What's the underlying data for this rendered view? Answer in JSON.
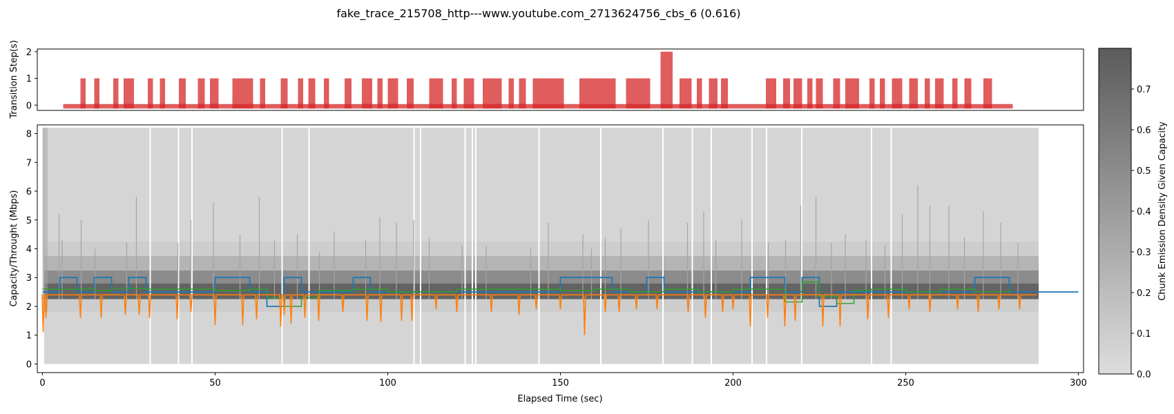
{
  "chart_data": {
    "title": "fake_trace_215708_http---www.youtube.com_2713624756_cbs_6 (0.616)",
    "colors": {
      "transition": "#d62728",
      "capacity": "#1f77b4",
      "throughput": "#ff7f0e",
      "estimate": "#2ca02c",
      "density_low": "#dddddd",
      "density_high": "#5b5b5b"
    },
    "top_panel": {
      "type": "bar",
      "ylabel": "Transition Step(s)",
      "ylim": [
        -0.2,
        2.1
      ],
      "yticks": [
        0,
        1,
        2
      ],
      "x_range": [
        6,
        281
      ],
      "steps": [
        {
          "x": [
            11,
            12.5
          ],
          "v": 1
        },
        {
          "x": [
            15,
            16.5
          ],
          "v": 1
        },
        {
          "x": [
            20.5,
            22
          ],
          "v": 1
        },
        {
          "x": [
            23.5,
            26.5
          ],
          "v": 1
        },
        {
          "x": [
            30.5,
            32
          ],
          "v": 1
        },
        {
          "x": [
            34,
            35.5
          ],
          "v": 1
        },
        {
          "x": [
            39.5,
            41.5
          ],
          "v": 1
        },
        {
          "x": [
            45,
            47
          ],
          "v": 1
        },
        {
          "x": [
            48.5,
            51
          ],
          "v": 1
        },
        {
          "x": [
            55,
            61
          ],
          "v": 1
        },
        {
          "x": [
            63,
            64.5
          ],
          "v": 1
        },
        {
          "x": [
            69,
            71
          ],
          "v": 1
        },
        {
          "x": [
            74,
            75.5
          ],
          "v": 1
        },
        {
          "x": [
            77,
            79
          ],
          "v": 1
        },
        {
          "x": [
            81.5,
            83
          ],
          "v": 1
        },
        {
          "x": [
            87.5,
            89.5
          ],
          "v": 1
        },
        {
          "x": [
            92.5,
            95.5
          ],
          "v": 1
        },
        {
          "x": [
            97,
            98.5
          ],
          "v": 1
        },
        {
          "x": [
            100,
            103
          ],
          "v": 1
        },
        {
          "x": [
            105.5,
            107.5
          ],
          "v": 1
        },
        {
          "x": [
            112,
            116
          ],
          "v": 1
        },
        {
          "x": [
            118.5,
            120
          ],
          "v": 1
        },
        {
          "x": [
            122,
            125
          ],
          "v": 1
        },
        {
          "x": [
            127.5,
            133
          ],
          "v": 1
        },
        {
          "x": [
            135,
            136.5
          ],
          "v": 1
        },
        {
          "x": [
            138,
            140
          ],
          "v": 1
        },
        {
          "x": [
            142,
            151
          ],
          "v": 1
        },
        {
          "x": [
            155.5,
            166
          ],
          "v": 1
        },
        {
          "x": [
            169,
            176
          ],
          "v": 1
        },
        {
          "x": [
            179,
            182.5
          ],
          "v": 2
        },
        {
          "x": [
            184.5,
            188
          ],
          "v": 1
        },
        {
          "x": [
            189.5,
            191
          ],
          "v": 1
        },
        {
          "x": [
            193,
            195.5
          ],
          "v": 1
        },
        {
          "x": [
            196.5,
            198.5
          ],
          "v": 1
        },
        {
          "x": [
            209.5,
            212.5
          ],
          "v": 1
        },
        {
          "x": [
            214.5,
            216.5
          ],
          "v": 1
        },
        {
          "x": [
            217.5,
            220
          ],
          "v": 1
        },
        {
          "x": [
            221.5,
            223
          ],
          "v": 1
        },
        {
          "x": [
            224,
            226
          ],
          "v": 1
        },
        {
          "x": [
            229,
            231
          ],
          "v": 1
        },
        {
          "x": [
            232.5,
            236.5
          ],
          "v": 1
        },
        {
          "x": [
            239.5,
            241
          ],
          "v": 1
        },
        {
          "x": [
            242.5,
            244
          ],
          "v": 1
        },
        {
          "x": [
            246,
            249
          ],
          "v": 1
        },
        {
          "x": [
            251,
            253.5
          ],
          "v": 1
        },
        {
          "x": [
            255.5,
            257
          ],
          "v": 1
        },
        {
          "x": [
            258.5,
            261
          ],
          "v": 1
        },
        {
          "x": [
            263.5,
            265
          ],
          "v": 1
        },
        {
          "x": [
            267,
            269
          ],
          "v": 1
        },
        {
          "x": [
            272.5,
            275
          ],
          "v": 1
        }
      ]
    },
    "main_panel": {
      "type": "line",
      "xlabel": "Elapsed Time (sec)",
      "ylabel": "Capacity/Throught (Mbps)",
      "xlim": [
        -1.5,
        301.5
      ],
      "ylim": [
        -0.3,
        8.3
      ],
      "xticks": [
        0,
        50,
        100,
        150,
        200,
        250,
        300
      ],
      "yticks": [
        0,
        1,
        2,
        3,
        4,
        5,
        6,
        7,
        8
      ],
      "density_x_range": [
        0.5,
        288.5
      ],
      "density_gaps": [
        31.2,
        39.4,
        43.3,
        69.4,
        77.2,
        107.6,
        109.5,
        122.4,
        124.5,
        125.5,
        143.8,
        161.7,
        179.7,
        188.2,
        193.7,
        205.5,
        209.7,
        219.9,
        240.1,
        245.8
      ],
      "density_bands": [
        {
          "y": [
            0,
            1.8
          ],
          "v": 0.05
        },
        {
          "y": [
            1.8,
            2.25
          ],
          "v": 0.1
        },
        {
          "y": [
            2.25,
            2.8
          ],
          "v": 0.75
        },
        {
          "y": [
            2.8,
            3.25
          ],
          "v": 0.5
        },
        {
          "y": [
            3.25,
            3.75
          ],
          "v": 0.25
        },
        {
          "y": [
            3.75,
            4.25
          ],
          "v": 0.1
        },
        {
          "y": [
            4.25,
            8.2
          ],
          "v": 0.05
        }
      ],
      "density_spikes": [
        {
          "x": 0.3,
          "top": 8.2
        },
        {
          "x": 4.8,
          "top": 5.2
        },
        {
          "x": 5.7,
          "top": 4.3
        },
        {
          "x": 11.2,
          "top": 5.0
        },
        {
          "x": 15.2,
          "top": 4.0
        },
        {
          "x": 24.4,
          "top": 4.2
        },
        {
          "x": 27.2,
          "top": 5.8
        },
        {
          "x": 39.2,
          "top": 4.2
        },
        {
          "x": 43,
          "top": 5.0
        },
        {
          "x": 49.5,
          "top": 5.6
        },
        {
          "x": 57.2,
          "top": 4.5
        },
        {
          "x": 62.8,
          "top": 5.8
        },
        {
          "x": 67.2,
          "top": 4.3
        },
        {
          "x": 73.8,
          "top": 4.5
        },
        {
          "x": 80.2,
          "top": 3.9
        },
        {
          "x": 84.5,
          "top": 4.6
        },
        {
          "x": 93.6,
          "top": 4.3
        },
        {
          "x": 97.7,
          "top": 5.1
        },
        {
          "x": 102.5,
          "top": 4.9
        },
        {
          "x": 107.5,
          "top": 5.0
        },
        {
          "x": 112,
          "top": 4.4
        },
        {
          "x": 121.5,
          "top": 4.1
        },
        {
          "x": 128.5,
          "top": 4.1
        },
        {
          "x": 141.4,
          "top": 4.0
        },
        {
          "x": 146.5,
          "top": 4.9
        },
        {
          "x": 156.5,
          "top": 4.5
        },
        {
          "x": 159,
          "top": 4.0
        },
        {
          "x": 163,
          "top": 4.4
        },
        {
          "x": 167.5,
          "top": 4.7
        },
        {
          "x": 175.5,
          "top": 5.0
        },
        {
          "x": 186.8,
          "top": 4.9
        },
        {
          "x": 191.5,
          "top": 5.3
        },
        {
          "x": 195,
          "top": 4.3
        },
        {
          "x": 202.5,
          "top": 5.0
        },
        {
          "x": 210.2,
          "top": 4.2
        },
        {
          "x": 215.2,
          "top": 4.3
        },
        {
          "x": 219.6,
          "top": 5.5
        },
        {
          "x": 224,
          "top": 5.8
        },
        {
          "x": 228.5,
          "top": 4.2
        },
        {
          "x": 232.5,
          "top": 4.5
        },
        {
          "x": 238.5,
          "top": 4.3
        },
        {
          "x": 244,
          "top": 4.1
        },
        {
          "x": 249,
          "top": 5.2
        },
        {
          "x": 253.5,
          "top": 6.2
        },
        {
          "x": 257,
          "top": 5.5
        },
        {
          "x": 262.5,
          "top": 5.5
        },
        {
          "x": 267,
          "top": 4.4
        },
        {
          "x": 272.5,
          "top": 5.3
        },
        {
          "x": 277.5,
          "top": 4.9
        },
        {
          "x": 282.5,
          "top": 4.2
        }
      ],
      "series": [
        {
          "key": "capacity",
          "x": [
            0,
            5,
            5,
            10,
            10,
            15,
            15,
            20,
            20,
            25,
            25,
            30,
            30,
            50,
            50,
            60,
            60,
            65,
            65,
            70,
            70,
            75,
            75,
            90,
            90,
            95,
            95,
            150,
            150,
            165,
            165,
            175,
            175,
            180,
            180,
            205,
            205,
            215,
            215,
            220,
            220,
            225,
            225,
            230,
            230,
            270,
            270,
            280,
            280,
            300
          ],
          "y": [
            2.5,
            2.5,
            3,
            3,
            2.5,
            2.5,
            3,
            3,
            2.5,
            2.5,
            3,
            3,
            2.5,
            2.5,
            3,
            3,
            2.5,
            2.5,
            2,
            2,
            3,
            3,
            2.5,
            2.5,
            3,
            3,
            2.5,
            2.5,
            3,
            3,
            2.5,
            2.5,
            3,
            3,
            2.5,
            2.5,
            3,
            3,
            2.5,
            2.5,
            3,
            3,
            2,
            2,
            2.5,
            2.5,
            3,
            3,
            2.5,
            2.5
          ]
        },
        {
          "key": "estimate",
          "x": [
            0,
            12,
            15,
            20,
            30,
            50,
            60,
            65,
            70,
            75,
            80,
            90,
            100,
            120,
            150,
            160,
            170,
            180,
            190,
            200,
            215,
            220,
            225,
            230,
            235,
            240,
            250,
            260,
            270,
            280
          ],
          "y": [
            2.6,
            2.62,
            2.55,
            2.62,
            2.6,
            2.55,
            2.6,
            2.3,
            2.0,
            2.3,
            2.55,
            2.6,
            2.5,
            2.6,
            2.55,
            2.6,
            2.5,
            2.6,
            2.5,
            2.6,
            2.15,
            2.85,
            2.35,
            2.1,
            2.55,
            2.6,
            2.5,
            2.6,
            2.5,
            2.6
          ]
        },
        {
          "key": "throughput",
          "base": 2.4,
          "x_range": [
            0,
            288
          ],
          "dips": [
            [
              0.2,
              1.1
            ],
            [
              1,
              1.6
            ],
            [
              11,
              1.6
            ],
            [
              17,
              1.6
            ],
            [
              24,
              1.7
            ],
            [
              28,
              1.7
            ],
            [
              31,
              1.6
            ],
            [
              39,
              1.55
            ],
            [
              43,
              1.8
            ],
            [
              50,
              1.35
            ],
            [
              58,
              1.35
            ],
            [
              62,
              1.55
            ],
            [
              69,
              1.3
            ],
            [
              70,
              1.7
            ],
            [
              72,
              1.4
            ],
            [
              76,
              1.6
            ],
            [
              80,
              1.5
            ],
            [
              87,
              1.8
            ],
            [
              94,
              1.5
            ],
            [
              98,
              1.45
            ],
            [
              104,
              1.5
            ],
            [
              107,
              1.5
            ],
            [
              114,
              1.9
            ],
            [
              120,
              1.8
            ],
            [
              130,
              1.8
            ],
            [
              138,
              1.7
            ],
            [
              143,
              1.9
            ],
            [
              150,
              1.9
            ],
            [
              157,
              1.0
            ],
            [
              163,
              1.8
            ],
            [
              167,
              1.8
            ],
            [
              172,
              1.9
            ],
            [
              178,
              1.9
            ],
            [
              187,
              1.8
            ],
            [
              192,
              1.6
            ],
            [
              197,
              1.8
            ],
            [
              200,
              1.9
            ],
            [
              205,
              1.3
            ],
            [
              210,
              1.6
            ],
            [
              215,
              1.3
            ],
            [
              218,
              1.5
            ],
            [
              226,
              1.3
            ],
            [
              231,
              1.3
            ],
            [
              239,
              1.55
            ],
            [
              245,
              1.6
            ],
            [
              251,
              1.9
            ],
            [
              257,
              1.8
            ],
            [
              265,
              1.9
            ],
            [
              271,
              1.8
            ],
            [
              277,
              1.9
            ],
            [
              283,
              1.9
            ]
          ]
        }
      ]
    },
    "colorbar": {
      "label": "Chunk Emission Density Given Capacity",
      "min": 0,
      "max": 0.8,
      "ticks": [
        "0.0",
        "0.1",
        "0.2",
        "0.3",
        "0.4",
        "0.5",
        "0.6",
        "0.7"
      ]
    }
  }
}
